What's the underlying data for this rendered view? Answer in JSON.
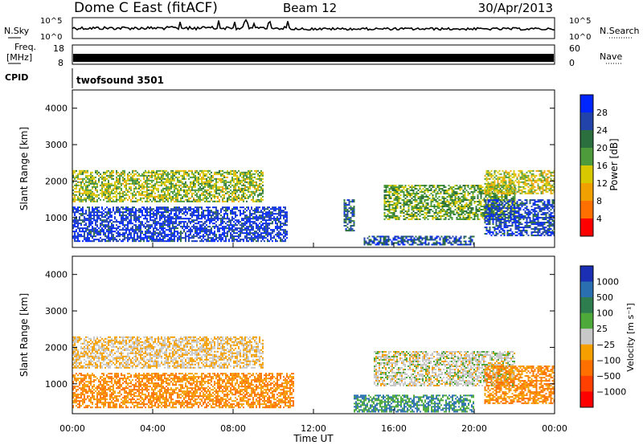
{
  "header": {
    "radar": "Dome C East (fitACF)",
    "beam": "Beam 12",
    "date": "30/Apr/2013"
  },
  "panels": {
    "nsky": {
      "label": "N.Sky",
      "ytop": "10^5",
      "ybot": "10^0",
      "right_top": "10^5",
      "right_bot": "10^0",
      "right_label": "N.Search"
    },
    "freq": {
      "label_line1": "Freq.",
      "label_line2": "[MHz]",
      "ytop": "18",
      "ybot": "8",
      "right_top": "60",
      "right_bot": "0",
      "right_label": "Nave"
    },
    "cpid": {
      "label": "CPID",
      "text": "twofsound 3501"
    }
  },
  "axes": {
    "ylabel": "Slant Range [km]",
    "xlabel": "Time UT",
    "yticks": [
      "1000",
      "2000",
      "3000",
      "4000"
    ],
    "xticks": [
      "00:00",
      "04:00",
      "08:00",
      "12:00",
      "16:00",
      "20:00",
      "00:00"
    ]
  },
  "colorbars": {
    "power": {
      "label": "Power [dB]",
      "ticks": [
        "4",
        "8",
        "12",
        "16",
        "20",
        "24",
        "28"
      ],
      "colors": [
        "#0026ff",
        "#2244aa",
        "#2a6f3d",
        "#4d9b3a",
        "#d8c800",
        "#f0a000",
        "#ff7000",
        "#ff0000"
      ]
    },
    "velocity": {
      "label": "Velocity [m s⁻¹]",
      "ticks": [
        "1000",
        "500",
        "100",
        "25",
        "−25",
        "−100",
        "−500",
        "−1000"
      ],
      "colors": [
        "#1b2fb4",
        "#2a6fb0",
        "#2e7d4f",
        "#4daa3a",
        "#c8c8c8",
        "#f5a000",
        "#ff7000",
        "#ff4000",
        "#ff0000"
      ]
    }
  },
  "chart_data": [
    {
      "type": "heatmap",
      "title": "Power",
      "x": [
        "00:00",
        "04:00",
        "08:00",
        "12:00",
        "16:00",
        "20:00",
        "00:00"
      ],
      "xlabel": "Time UT",
      "ylabel": "Slant Range [km]",
      "ylim": [
        180,
        4500
      ],
      "zlabel": "Power [dB]",
      "zlim": [
        0,
        32
      ],
      "regions": [
        {
          "t_start_h": 0.0,
          "t_end_h": 10.7,
          "range_km": [
            300,
            1300
          ],
          "value_db": 28
        },
        {
          "t_start_h": 0.0,
          "t_end_h": 9.5,
          "range_km": [
            1400,
            2300
          ],
          "value_db": 16
        },
        {
          "t_start_h": 13.5,
          "t_end_h": 14.0,
          "range_km": [
            600,
            1500
          ],
          "value_db": 24
        },
        {
          "t_start_h": 14.5,
          "t_end_h": 20.0,
          "range_km": [
            200,
            500
          ],
          "value_db": 26
        },
        {
          "t_start_h": 15.5,
          "t_end_h": 22.0,
          "range_km": [
            900,
            1900
          ],
          "value_db": 18
        },
        {
          "t_start_h": 20.5,
          "t_end_h": 24.0,
          "range_km": [
            450,
            1500
          ],
          "value_db": 27
        },
        {
          "t_start_h": 20.5,
          "t_end_h": 24.0,
          "range_km": [
            1600,
            2300
          ],
          "value_db": 14
        }
      ]
    },
    {
      "type": "heatmap",
      "title": "Velocity",
      "x": [
        "00:00",
        "04:00",
        "08:00",
        "12:00",
        "16:00",
        "20:00",
        "00:00"
      ],
      "xlabel": "Time UT",
      "ylabel": "Slant Range [km]",
      "ylim": [
        180,
        4500
      ],
      "zlabel": "Velocity [m s⁻¹]",
      "zlim": [
        -1000,
        1000
      ],
      "regions": [
        {
          "t_start_h": 0.0,
          "t_end_h": 11.0,
          "range_km": [
            300,
            1300
          ],
          "value_ms": -100
        },
        {
          "t_start_h": 0.0,
          "t_end_h": 9.5,
          "range_km": [
            1400,
            2300
          ],
          "value_ms": -25
        },
        {
          "t_start_h": 14.0,
          "t_end_h": 20.0,
          "range_km": [
            200,
            700
          ],
          "value_ms": 100
        },
        {
          "t_start_h": 15.0,
          "t_end_h": 22.0,
          "range_km": [
            900,
            1900
          ],
          "value_ms": 0
        },
        {
          "t_start_h": 20.5,
          "t_end_h": 24.0,
          "range_km": [
            400,
            1500
          ],
          "value_ms": -100
        }
      ]
    }
  ]
}
